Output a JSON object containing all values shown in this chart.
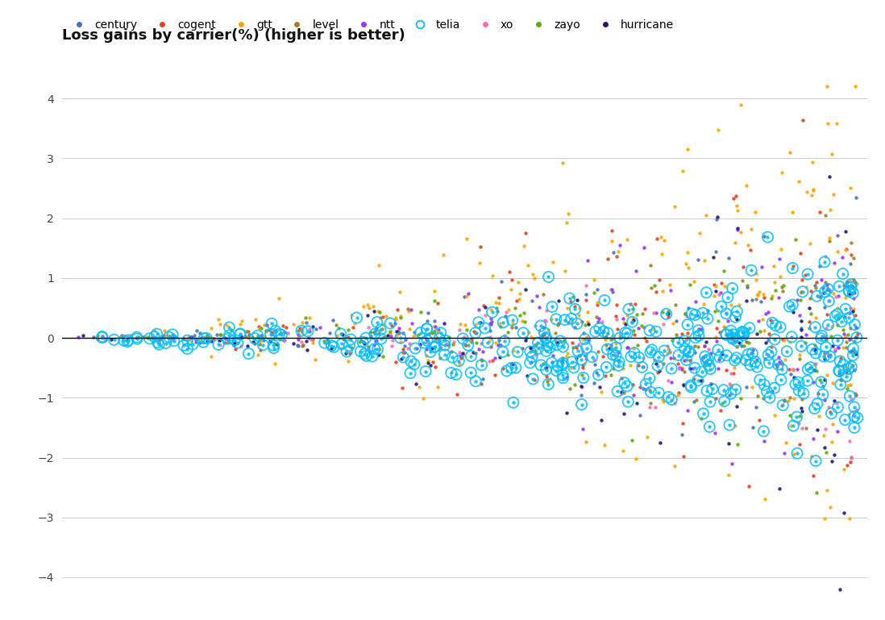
{
  "title": "Loss gains by carrier(%) (higher is better)",
  "carriers": [
    "century",
    "cogent",
    "gtt",
    "level",
    "ntt",
    "telia",
    "xo",
    "zayo",
    "hurricane"
  ],
  "colors": {
    "century": "#4472C4",
    "cogent": "#E8401C",
    "gtt": "#FFA500",
    "level": "#A08020",
    "ntt": "#9B30FF",
    "telia": "#00BFFF",
    "xo": "#FF69B4",
    "zayo": "#5AAF00",
    "hurricane": "#1A1A7A"
  },
  "ylim": [
    -4.3,
    4.3
  ],
  "yticks": [
    -4,
    -3,
    -2,
    -1,
    0,
    1,
    2,
    3,
    4
  ],
  "n_points": 1200,
  "seed": 42,
  "background_color": "#FFFFFF",
  "grid_color": "#CCCCCC",
  "title_fontsize": 13,
  "legend_fontsize": 10,
  "dot_size": 10,
  "telia_outer_size": 90,
  "telia_inner_size": 10
}
